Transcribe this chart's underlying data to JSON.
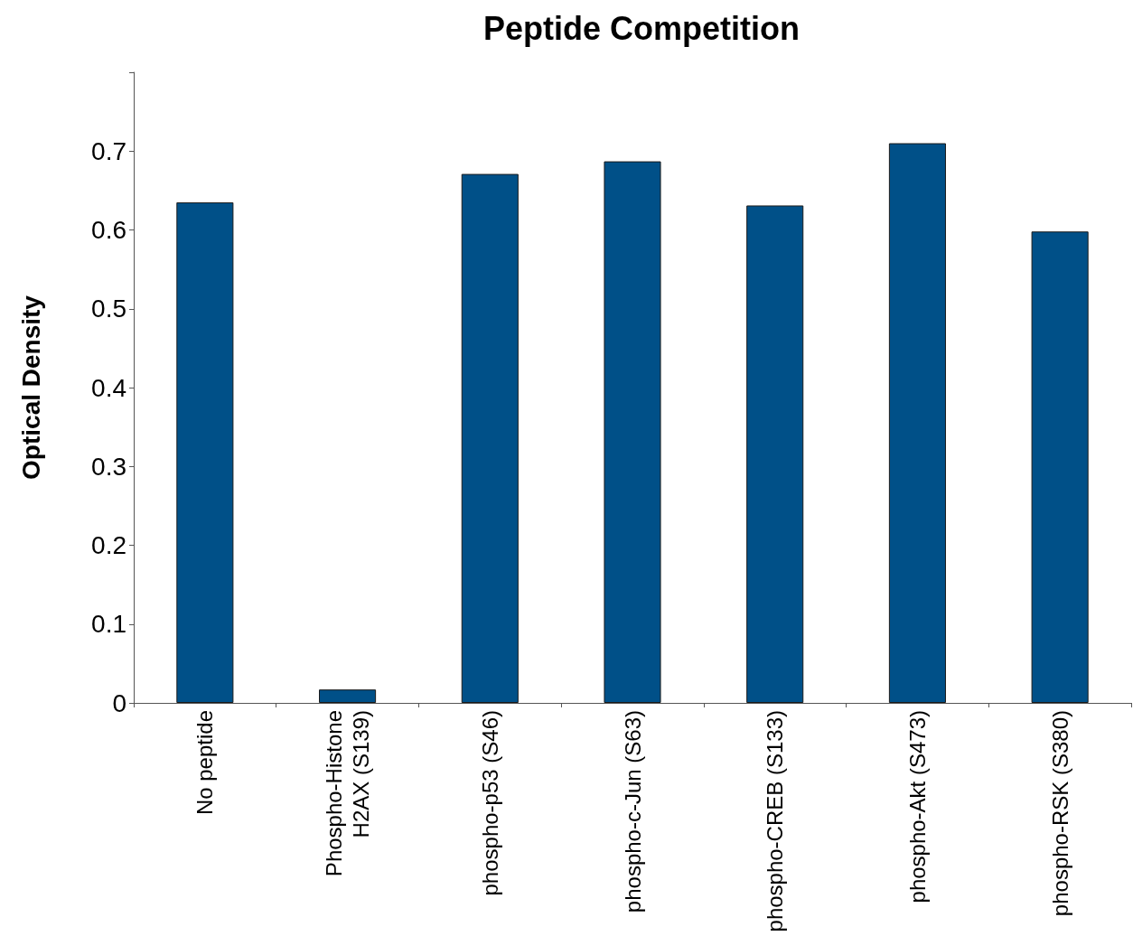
{
  "chart_data": {
    "type": "bar",
    "title": "Peptide Competition",
    "ylabel": "Optical Density",
    "categories": [
      "No peptide",
      "Phospho-Histone\nH2AX (S139)",
      "phospho-p53 (S46)",
      "phospho-c-Jun (S63)",
      "phospho-CREB (S133)",
      "phospho-Akt (S473)",
      "phospho-RSK (S380)"
    ],
    "values": [
      0.635,
      0.017,
      0.671,
      0.687,
      0.631,
      0.71,
      0.598
    ],
    "color": "#005088",
    "ylim": [
      0,
      0.8
    ],
    "yticks": [
      0,
      0.1,
      0.2,
      0.3,
      0.4,
      0.5,
      0.6,
      0.7,
      {
        "value": 0.8,
        "label": null
      }
    ],
    "grid": false
  }
}
